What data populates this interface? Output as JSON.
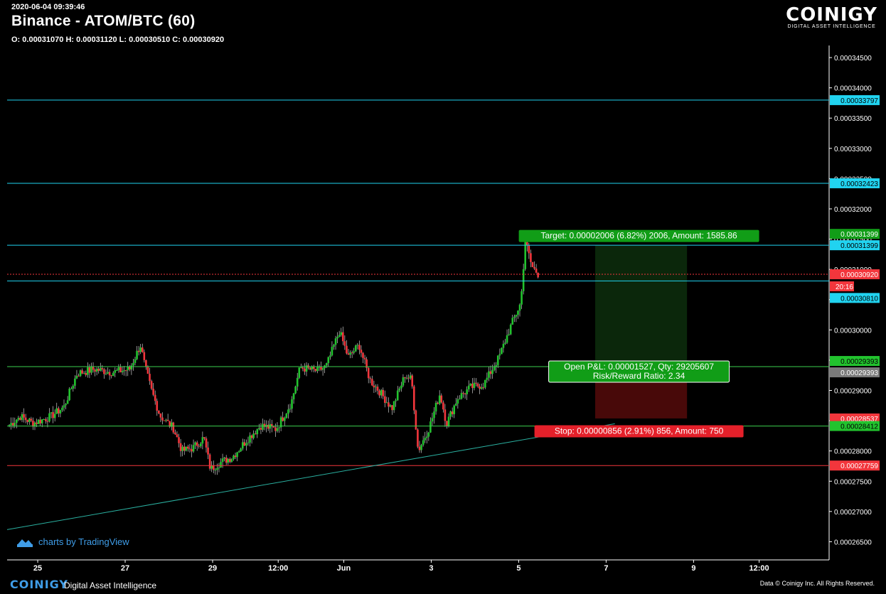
{
  "header": {
    "timestamp": "2020-06-04 09:39:46",
    "title": "Binance - ATOM/BTC (60)",
    "ohlc": "O: 0.00031070 H: 0.00031120 L: 0.00030510 C: 0.00030920"
  },
  "brand": {
    "name": "COINIGY",
    "tagline": "DIGITAL ASSET INTELLIGENCE"
  },
  "watermark": {
    "text": "charts by TradingView"
  },
  "footer": {
    "logo": "COINIGY",
    "tagline": "Digital Asset Intelligence",
    "copyright": "Data © Coinigy Inc.  All Rights Reserved."
  },
  "colors": {
    "background": "#000000",
    "up": "#22c32e",
    "down": "#f2363c",
    "cyan": "#21d3f0",
    "green_line": "#3ccf4e",
    "red_line": "#f2363c",
    "trendline": "#2ab0a0",
    "label_green": "#119d17"
  },
  "chart_data": {
    "type": "candlestick",
    "y_ticks": [
      "0.00026500",
      "0.00027000",
      "0.00027500",
      "0.00028000",
      "0.00028500",
      "0.00029000",
      "0.00029500",
      "0.00030000",
      "0.00030500",
      "0.00031000",
      "0.00031500",
      "0.00032000",
      "0.00032500",
      "0.00033000",
      "0.00033500",
      "0.00034000",
      "0.00034500"
    ],
    "ylim": [
      0.000262,
      0.000347
    ],
    "x_ticks": [
      {
        "label": "25",
        "day": 0
      },
      {
        "label": "27",
        "day": 2
      },
      {
        "label": "29",
        "day": 4
      },
      {
        "label": "12:00",
        "day": 5.5
      },
      {
        "label": "Jun",
        "day": 7
      },
      {
        "label": "3",
        "day": 9
      },
      {
        "label": "5",
        "day": 11
      },
      {
        "label": "7",
        "day": 13
      },
      {
        "label": "9",
        "day": 15
      },
      {
        "label": "12:00",
        "day": 16.5
      }
    ],
    "x_range_days": [
      -0.7,
      18.1
    ],
    "anchor_points": [
      [
        -0.65,
        0.0002843
      ],
      [
        -0.4,
        0.0002857
      ],
      [
        -0.1,
        0.0002846
      ],
      [
        0.3,
        0.0002857
      ],
      [
        0.6,
        0.0002873
      ],
      [
        0.9,
        0.0002928
      ],
      [
        1.3,
        0.0002935
      ],
      [
        1.7,
        0.000293
      ],
      [
        2.1,
        0.0002935
      ],
      [
        2.35,
        0.0002975
      ],
      [
        2.45,
        0.000294
      ],
      [
        2.6,
        0.00029
      ],
      [
        2.8,
        0.0002858
      ],
      [
        3.1,
        0.0002838
      ],
      [
        3.3,
        0.00028
      ],
      [
        3.55,
        0.0002805
      ],
      [
        3.8,
        0.0002822
      ],
      [
        3.95,
        0.000277
      ],
      [
        4.2,
        0.0002782
      ],
      [
        4.45,
        0.000279
      ],
      [
        4.8,
        0.000282
      ],
      [
        5.1,
        0.0002842
      ],
      [
        5.45,
        0.0002836
      ],
      [
        5.8,
        0.000288
      ],
      [
        6.0,
        0.0002938
      ],
      [
        6.4,
        0.0002932
      ],
      [
        6.6,
        0.000294
      ],
      [
        6.9,
        0.0002998
      ],
      [
        7.1,
        0.0002955
      ],
      [
        7.35,
        0.0002975
      ],
      [
        7.6,
        0.0002917
      ],
      [
        7.8,
        0.00029
      ],
      [
        8.1,
        0.000287
      ],
      [
        8.4,
        0.0002925
      ],
      [
        8.55,
        0.0002918
      ],
      [
        8.7,
        0.00028
      ],
      [
        8.95,
        0.0002838
      ],
      [
        9.2,
        0.0002895
      ],
      [
        9.35,
        0.0002845
      ],
      [
        9.6,
        0.0002887
      ],
      [
        9.9,
        0.0002905
      ],
      [
        10.2,
        0.000291
      ],
      [
        10.55,
        0.0002955
      ],
      [
        10.85,
        0.0003012
      ],
      [
        11.05,
        0.0003045
      ],
      [
        11.15,
        0.0003147
      ],
      [
        11.3,
        0.0003105
      ],
      [
        11.45,
        0.0003092
      ]
    ],
    "horizontal_lines": [
      {
        "value": 0.00033797,
        "color": "cyan"
      },
      {
        "value": 0.00032423,
        "color": "cyan"
      },
      {
        "value": 0.00031399,
        "color": "cyan"
      },
      {
        "value": 0.0003092,
        "color": "red",
        "dotted": true
      },
      {
        "value": 0.0003081,
        "color": "cyan"
      },
      {
        "value": 0.00029393,
        "color": "green_line"
      },
      {
        "value": 0.00028412,
        "color": "green_line"
      },
      {
        "value": 0.00027759,
        "color": "red_line"
      }
    ],
    "trendline": [
      [
        -0.7,
        0.000267
      ],
      [
        13.2,
        0.0002845
      ]
    ],
    "price_tags": [
      {
        "text": "0.00033797",
        "value": 0.00033797,
        "bg": "#21d3f0",
        "fg": "#000"
      },
      {
        "text": "0.00032423",
        "value": 0.00032423,
        "bg": "#21d3f0",
        "fg": "#000"
      },
      {
        "text": "0.00031399",
        "value": 0.00031399,
        "bg": "#119d17",
        "fg": "#fff",
        "offset": -16
      },
      {
        "text": "0.00031399",
        "value": 0.00031399,
        "bg": "#21d3f0",
        "fg": "#000"
      },
      {
        "text": "0.00030920",
        "value": 0.0003092,
        "bg": "#f2363c",
        "fg": "#fff"
      },
      {
        "text": "20:16",
        "value": 0.0003092,
        "bg": "#f2363c",
        "fg": "#fff",
        "offset": 17,
        "short": true
      },
      {
        "text": "0.00030810",
        "value": 0.0003081,
        "bg": "#21d3f0",
        "fg": "#000",
        "offset": 24
      },
      {
        "text": "0.00029393",
        "value": 0.00029393,
        "bg": "#22c32e",
        "fg": "#000",
        "offset": -8
      },
      {
        "text": "0.00029393",
        "value": 0.00029393,
        "bg": "#7a7a7a",
        "fg": "#fff",
        "offset": 8
      },
      {
        "text": "0.00028537",
        "value": 0.00028537,
        "bg": "#f2363c",
        "fg": "#fff"
      },
      {
        "text": "0.00028412",
        "value": 0.00028412,
        "bg": "#22c32e",
        "fg": "#000"
      },
      {
        "text": "0.00027759",
        "value": 0.00027759,
        "bg": "#f2363c",
        "fg": "#fff"
      }
    ],
    "position": {
      "entry": 0.00029393,
      "target": 0.00031399,
      "stop": 0.00028537,
      "start_day": 12.75,
      "end_day": 14.85,
      "target_label": "Target: 0.00002006 (6.82%) 2006, Amount: 1585.86",
      "pnl_label_1": "Open P&L: 0.00001527, Qty: 29205607",
      "pnl_label_2": "Risk/Reward Ratio: 2.34",
      "stop_label": "Stop: 0.00000856 (2.91%) 856, Amount: 750"
    }
  }
}
